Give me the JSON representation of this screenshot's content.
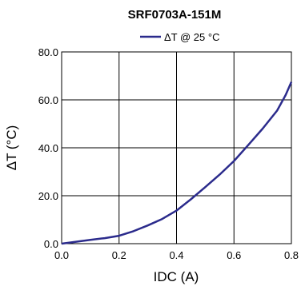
{
  "chart_data": {
    "type": "line",
    "title": "SRF0703A-151M",
    "xlabel": "IDC (A)",
    "ylabel": "ΔT (°C)",
    "xlim": [
      0.0,
      0.8
    ],
    "ylim": [
      0.0,
      80.0
    ],
    "x_ticks": [
      "0.0",
      "0.2",
      "0.4",
      "0.6",
      "0.8"
    ],
    "y_ticks": [
      "0.0",
      "20.0",
      "40.0",
      "60.0",
      "80.0"
    ],
    "grid": true,
    "legend_position": "top-center",
    "series": [
      {
        "name": "ΔT @ 25 °C",
        "color": "#2b2b8c",
        "x": [
          0.0,
          0.05,
          0.1,
          0.15,
          0.2,
          0.25,
          0.3,
          0.35,
          0.4,
          0.45,
          0.5,
          0.55,
          0.6,
          0.65,
          0.7,
          0.75,
          0.78,
          0.8
        ],
        "y": [
          0.0,
          0.8,
          1.6,
          2.3,
          3.3,
          5.2,
          7.6,
          10.3,
          13.8,
          18.5,
          23.6,
          28.8,
          34.5,
          41.2,
          48.0,
          55.5,
          62.0,
          67.5
        ]
      }
    ]
  }
}
